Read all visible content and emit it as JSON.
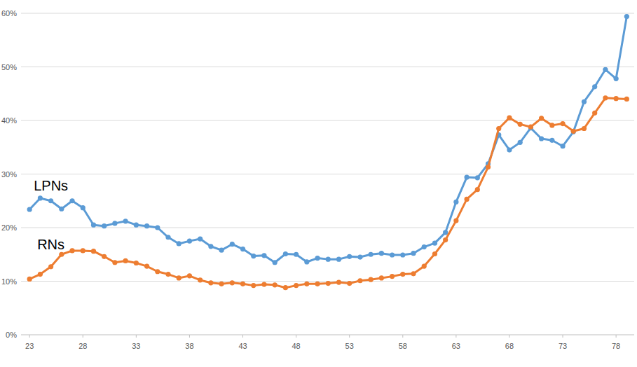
{
  "chart_data": {
    "type": "line",
    "x": [
      23,
      24,
      25,
      26,
      27,
      28,
      29,
      30,
      31,
      32,
      33,
      34,
      35,
      36,
      37,
      38,
      39,
      40,
      41,
      42,
      43,
      44,
      45,
      46,
      47,
      48,
      49,
      50,
      51,
      52,
      53,
      54,
      55,
      56,
      57,
      58,
      59,
      60,
      61,
      62,
      63,
      64,
      65,
      66,
      67,
      68,
      69,
      70,
      71,
      72,
      73,
      74,
      75,
      76,
      77,
      78,
      79
    ],
    "series": [
      {
        "name": "LPNs",
        "color": "#5b9bd5",
        "marker": "circle",
        "values": [
          23.4,
          25.5,
          25.0,
          23.5,
          25.0,
          23.7,
          20.5,
          20.3,
          20.8,
          21.2,
          20.5,
          20.3,
          20.0,
          18.2,
          17.0,
          17.5,
          17.9,
          16.5,
          15.8,
          16.9,
          16.0,
          14.7,
          14.8,
          13.5,
          15.1,
          15.0,
          13.6,
          14.3,
          14.1,
          14.1,
          14.6,
          14.5,
          15.0,
          15.2,
          14.9,
          14.9,
          15.2,
          16.4,
          17.1,
          19.1,
          24.8,
          29.4,
          29.3,
          31.9,
          37.3,
          34.5,
          35.9,
          38.6,
          36.6,
          36.3,
          35.2,
          37.9,
          43.5,
          46.3,
          49.5,
          47.8,
          59.4
        ]
      },
      {
        "name": "RNs",
        "color": "#ed7d31",
        "marker": "circle",
        "values": [
          10.4,
          11.3,
          12.7,
          15.0,
          15.7,
          15.7,
          15.6,
          14.6,
          13.5,
          13.8,
          13.4,
          12.8,
          11.8,
          11.3,
          10.6,
          11.0,
          10.2,
          9.7,
          9.5,
          9.7,
          9.5,
          9.2,
          9.4,
          9.3,
          8.8,
          9.2,
          9.5,
          9.5,
          9.6,
          9.8,
          9.6,
          10.1,
          10.3,
          10.6,
          10.9,
          11.3,
          11.4,
          12.8,
          15.1,
          17.7,
          21.3,
          25.3,
          27.1,
          31.3,
          38.5,
          40.5,
          39.3,
          38.8,
          40.4,
          39.1,
          39.4,
          38.0,
          38.5,
          41.4,
          44.2,
          44.1,
          44.0
        ]
      }
    ],
    "xlim": [
      22.2,
      79.7
    ],
    "xticks": [
      23,
      28,
      33,
      38,
      43,
      48,
      53,
      58,
      63,
      68,
      73,
      78
    ],
    "ylim": [
      0,
      60
    ],
    "yticks": [
      {
        "value": 0,
        "label": "0%"
      },
      {
        "value": 10,
        "label": "10%"
      },
      {
        "value": 20,
        "label": "20%"
      },
      {
        "value": 30,
        "label": "30%"
      },
      {
        "value": 40,
        "label": "40%"
      },
      {
        "value": 50,
        "label": "50%"
      },
      {
        "value": 60,
        "label": "60%"
      }
    ],
    "grid": true
  }
}
